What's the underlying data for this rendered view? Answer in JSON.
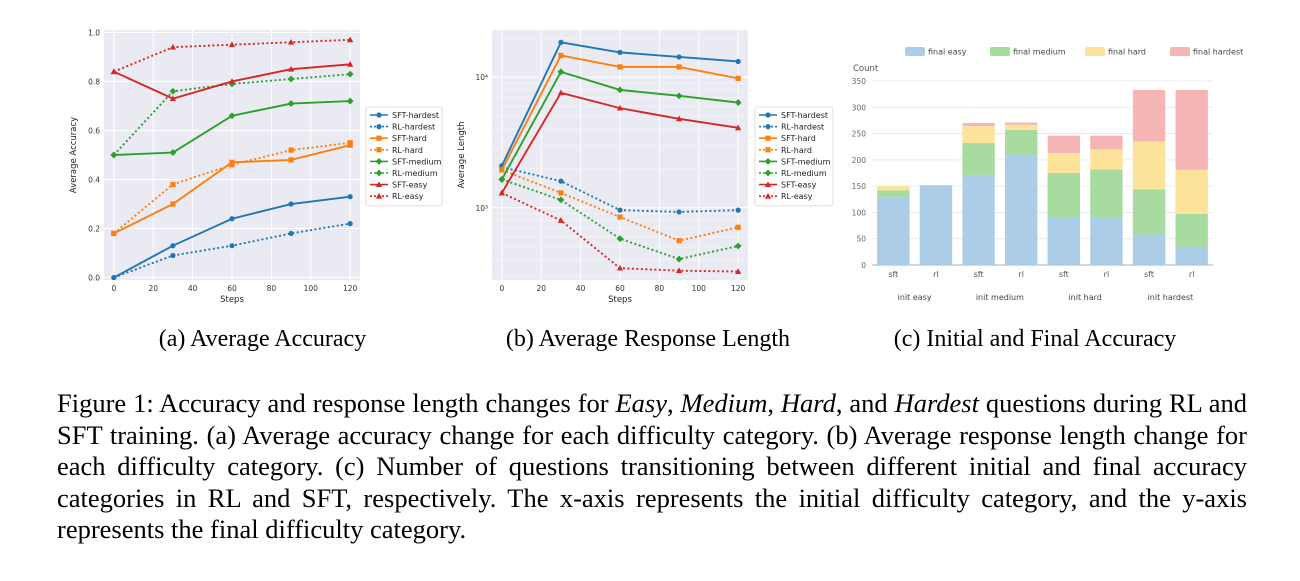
{
  "chart_data": [
    {
      "type": "line",
      "xlabel": "Steps",
      "ylabel": "Average Accuracy",
      "x": [
        0,
        30,
        60,
        90,
        120
      ],
      "xticks": [
        "0",
        "20",
        "40",
        "60",
        "80",
        "100",
        "120"
      ],
      "yticks": [
        "0.0",
        "0.2",
        "0.4",
        "0.6",
        "0.8",
        "1.0"
      ],
      "xlim": [
        -5,
        125
      ],
      "ylim": [
        -0.01,
        1.01
      ],
      "scale": "linear",
      "grid": true,
      "legend": "right",
      "series": [
        {
          "name": "SFT-hardest",
          "color": "#1f77b4",
          "dash": false,
          "marker": "circle",
          "values": [
            0.0,
            0.13,
            0.24,
            0.3,
            0.33
          ]
        },
        {
          "name": "RL-hardest",
          "color": "#1f77b4",
          "dash": true,
          "marker": "circle",
          "values": [
            0.0,
            0.09,
            0.13,
            0.18,
            0.22
          ]
        },
        {
          "name": "SFT-hard",
          "color": "#ff7f0e",
          "dash": false,
          "marker": "square",
          "values": [
            0.18,
            0.3,
            0.47,
            0.48,
            0.54
          ]
        },
        {
          "name": "RL-hard",
          "color": "#ff7f0e",
          "dash": true,
          "marker": "square",
          "values": [
            0.18,
            0.38,
            0.46,
            0.52,
            0.55
          ]
        },
        {
          "name": "SFT-medium",
          "color": "#2ca02c",
          "dash": false,
          "marker": "diamond",
          "values": [
            0.5,
            0.51,
            0.66,
            0.71,
            0.72
          ]
        },
        {
          "name": "RL-medium",
          "color": "#2ca02c",
          "dash": true,
          "marker": "diamond",
          "values": [
            0.5,
            0.76,
            0.79,
            0.81,
            0.83
          ]
        },
        {
          "name": "SFT-easy",
          "color": "#d62728",
          "dash": false,
          "marker": "triangle",
          "values": [
            0.84,
            0.73,
            0.8,
            0.85,
            0.87
          ]
        },
        {
          "name": "RL-easy",
          "color": "#d62728",
          "dash": true,
          "marker": "triangle",
          "values": [
            0.84,
            0.94,
            0.95,
            0.96,
            0.97
          ]
        }
      ]
    },
    {
      "type": "line",
      "xlabel": "Steps",
      "ylabel": "Average Length",
      "x": [
        0,
        30,
        60,
        90,
        120
      ],
      "xticks": [
        "0",
        "20",
        "40",
        "60",
        "80",
        "100",
        "120"
      ],
      "yticks": [
        "10³",
        "10⁴"
      ],
      "xlim": [
        -5,
        125
      ],
      "ylim": [
        280,
        23000
      ],
      "scale": "log",
      "grid": true,
      "legend": "right",
      "series": [
        {
          "name": "SFT-hardest",
          "color": "#1f77b4",
          "dash": false,
          "marker": "circle",
          "values": [
            2100,
            18500,
            15500,
            14300,
            13200
          ]
        },
        {
          "name": "RL-hardest",
          "color": "#1f77b4",
          "dash": true,
          "marker": "circle",
          "values": [
            2050,
            1600,
            960,
            930,
            960
          ]
        },
        {
          "name": "SFT-hard",
          "color": "#ff7f0e",
          "dash": false,
          "marker": "square",
          "values": [
            1950,
            14700,
            12000,
            12000,
            9800
          ]
        },
        {
          "name": "RL-hard",
          "color": "#ff7f0e",
          "dash": true,
          "marker": "square",
          "values": [
            1950,
            1300,
            850,
            560,
            710
          ]
        },
        {
          "name": "SFT-medium",
          "color": "#2ca02c",
          "dash": false,
          "marker": "diamond",
          "values": [
            1650,
            11000,
            8000,
            7200,
            6400
          ]
        },
        {
          "name": "RL-medium",
          "color": "#2ca02c",
          "dash": true,
          "marker": "diamond",
          "values": [
            1650,
            1150,
            580,
            405,
            510
          ]
        },
        {
          "name": "SFT-easy",
          "color": "#d62728",
          "dash": false,
          "marker": "triangle",
          "values": [
            1300,
            7600,
            5800,
            4800,
            4100
          ]
        },
        {
          "name": "RL-easy",
          "color": "#d62728",
          "dash": true,
          "marker": "triangle",
          "values": [
            1300,
            800,
            345,
            330,
            325
          ]
        }
      ]
    },
    {
      "type": "bar",
      "stacked": true,
      "ylabel": "Count",
      "ylim": [
        0,
        350
      ],
      "yticks": [
        "0",
        "50",
        "100",
        "150",
        "200",
        "250",
        "300",
        "350"
      ],
      "grid": true,
      "legend": "top",
      "categories": [
        "sft",
        "rl",
        "sft",
        "rl",
        "sft",
        "rl",
        "sft",
        "rl"
      ],
      "groups": [
        "init easy",
        "init medium",
        "init hard",
        "init hardest"
      ],
      "series": [
        {
          "name": "final easy",
          "color": "#abcde8",
          "values": [
            128,
            151,
            170,
            210,
            91,
            90,
            58,
            35
          ]
        },
        {
          "name": "final medium",
          "color": "#a7dba0",
          "values": [
            14,
            1,
            62,
            47,
            84,
            92,
            86,
            62
          ]
        },
        {
          "name": "final hard",
          "color": "#fde39a",
          "values": [
            8,
            0,
            32,
            10,
            38,
            38,
            91,
            84
          ]
        },
        {
          "name": "final hardest",
          "color": "#f6b5b5",
          "values": [
            0,
            0,
            6,
            4,
            33,
            26,
            98,
            152
          ]
        }
      ]
    }
  ],
  "subcaptions": {
    "a": "(a) Average Accuracy",
    "b": "(b) Average Response Length",
    "c": "(c) Initial and Final Accuracy"
  },
  "caption": {
    "lead": "Figure 1:",
    "segments": [
      {
        "t": " Accuracy and response length changes for ",
        "i": false
      },
      {
        "t": "Easy",
        "i": true
      },
      {
        "t": ", ",
        "i": false
      },
      {
        "t": "Medium",
        "i": true
      },
      {
        "t": ", ",
        "i": false
      },
      {
        "t": "Hard",
        "i": true
      },
      {
        "t": ", and ",
        "i": false
      },
      {
        "t": "Hardest",
        "i": true
      },
      {
        "t": " questions during RL and SFT training. (a) Average accuracy change for each difficulty category. (b) Average response length change for each difficulty category. (c) Number of questions transitioning between different initial and final accuracy categories in RL and SFT, respectively. The x-axis represents the initial difficulty category, and the y-axis represents the final difficulty category.",
        "i": false
      }
    ]
  }
}
